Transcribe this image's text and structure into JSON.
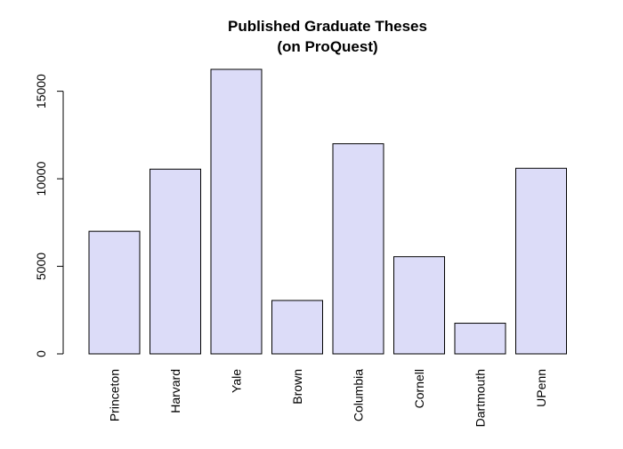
{
  "chart_data": {
    "type": "bar",
    "title": "Published Graduate Theses",
    "subtitle": "(on ProQuest)",
    "xlabel": "",
    "ylabel": "",
    "categories": [
      "Princeton",
      "Harvard",
      "Yale",
      "Brown",
      "Columbia",
      "Cornell",
      "Dartmouth",
      "UPenn"
    ],
    "values": [
      7000,
      10550,
      16250,
      3050,
      12000,
      5550,
      1750,
      10600
    ],
    "ylim": [
      0,
      16250
    ],
    "yticks": [
      0,
      5000,
      10000,
      15000
    ],
    "ytick_labels": [
      "0",
      "5000",
      "10000",
      "15000"
    ],
    "grid": false,
    "legend": "none",
    "colors": {
      "bar_fill": "#dcdcf8",
      "bar_stroke": "#000000",
      "axis": "#000000",
      "text": "#000000"
    }
  }
}
